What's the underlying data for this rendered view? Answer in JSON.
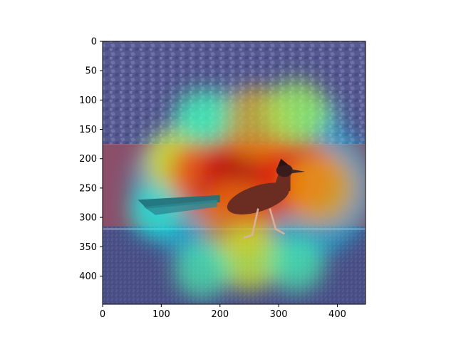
{
  "chart_data": {
    "type": "heatmap",
    "title": "",
    "xlabel": "",
    "ylabel": "",
    "description_kind": "image with attention heatmap overlay",
    "xlim": [
      0,
      448
    ],
    "ylim": [
      448,
      0
    ],
    "x_ticks": [
      0,
      100,
      200,
      300,
      400
    ],
    "y_ticks": [
      0,
      50,
      100,
      150,
      200,
      250,
      300,
      350,
      400
    ],
    "colormap": "jet",
    "grid": false,
    "legend": "none",
    "hotspots": [
      {
        "x": 130,
        "y": 205,
        "intensity": 0.62
      },
      {
        "x": 180,
        "y": 230,
        "intensity": 0.82
      },
      {
        "x": 230,
        "y": 235,
        "intensity": 0.92
      },
      {
        "x": 275,
        "y": 235,
        "intensity": 0.95
      },
      {
        "x": 330,
        "y": 230,
        "intensity": 0.85
      },
      {
        "x": 370,
        "y": 250,
        "intensity": 0.7
      },
      {
        "x": 260,
        "y": 140,
        "intensity": 0.72
      },
      {
        "x": 330,
        "y": 120,
        "intensity": 0.55
      },
      {
        "x": 170,
        "y": 130,
        "intensity": 0.45
      },
      {
        "x": 230,
        "y": 300,
        "intensity": 0.75
      },
      {
        "x": 250,
        "y": 370,
        "intensity": 0.6
      },
      {
        "x": 170,
        "y": 390,
        "intensity": 0.45
      },
      {
        "x": 330,
        "y": 380,
        "intensity": 0.45
      },
      {
        "x": 90,
        "y": 290,
        "intensity": 0.4
      }
    ],
    "colors": {
      "cold": "#3a3f8f",
      "gravel": "#5a5f9a",
      "wall": "#b4556a",
      "road": "#4a5088",
      "bird_body": "#6b2c22",
      "bird_tail": "#1f6f7a"
    }
  }
}
